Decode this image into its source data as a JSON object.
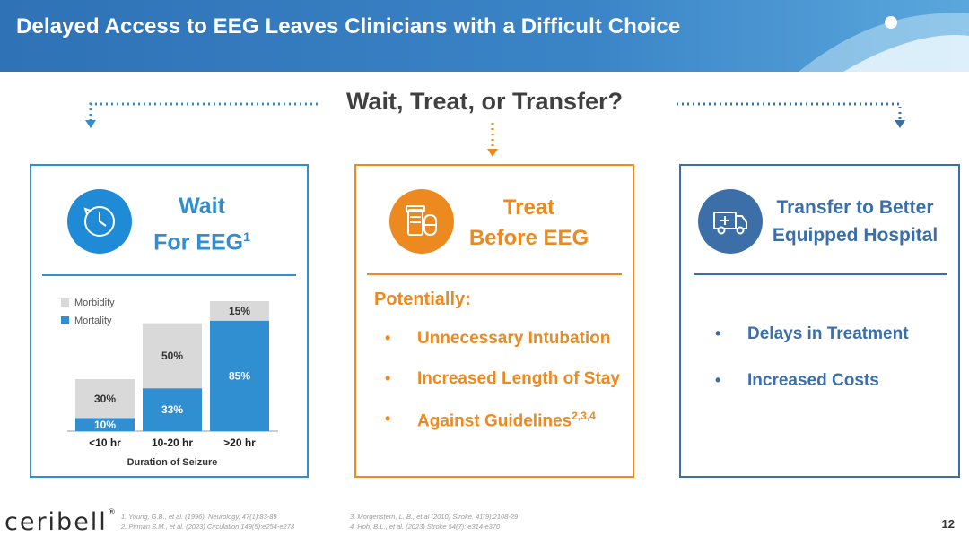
{
  "header": {
    "title": "Delayed Access to EEG Leaves Clinicians with a Difficult Choice"
  },
  "question": "Wait, Treat, or Transfer?",
  "colors": {
    "blue": "#2f8fd1",
    "orange": "#ec8a20",
    "navy": "#3c6fa8",
    "gray": "#d9d9d9"
  },
  "wait_card": {
    "icon": "clock-icon",
    "title_line1": "Wait",
    "title_line2": "For EEG",
    "title_sup": "1",
    "chart_data": {
      "type": "bar",
      "stacked": true,
      "categories": [
        "<10 hr",
        "10-20 hr",
        ">20 hr"
      ],
      "series": [
        {
          "name": "Mortality",
          "values": [
            10,
            33,
            85
          ],
          "labels": [
            "10%",
            "33%",
            "85%"
          ],
          "color": "#2f8fd1"
        },
        {
          "name": "Morbidity",
          "values": [
            30,
            50,
            15
          ],
          "labels": [
            "30%",
            "50%",
            "15%"
          ],
          "color": "#d9d9d9"
        }
      ],
      "xlabel": "Duration of Seizure",
      "ylabel": "",
      "ylim": [
        0,
        100
      ],
      "legend": "top-left",
      "grid": false
    }
  },
  "treat_card": {
    "icon": "medication-icon",
    "title_line1": "Treat",
    "title_line2": "Before EEG",
    "subtitle": "Potentially:",
    "bullets": [
      {
        "text": "Unnecessary Intubation",
        "sup": ""
      },
      {
        "text": "Increased Length of Stay",
        "sup": ""
      },
      {
        "text": "Against Guidelines",
        "sup": "2,3,4"
      }
    ]
  },
  "transfer_card": {
    "icon": "ambulance-icon",
    "title_line1": "Transfer to Better",
    "title_line2": "Equipped Hospital",
    "bullets": [
      "Delays in Treatment",
      "Increased Costs"
    ]
  },
  "footer": {
    "logo": "ceribell",
    "logo_mark": "®",
    "refs_left": [
      "1. Young, G.B., et al. (1996). Neurology, 47(1):83-89",
      "2. Pirman S.M., et al. (2023) Circulation 149(5):e254-e273"
    ],
    "refs_right": [
      "3. Morgenstern, L. B., et al (2010) Stroke. 41(9):2108-29",
      "4. Hoh, B.L., et al. (2023) Stroke 54(7): e314-e370"
    ],
    "page_number": "12"
  }
}
